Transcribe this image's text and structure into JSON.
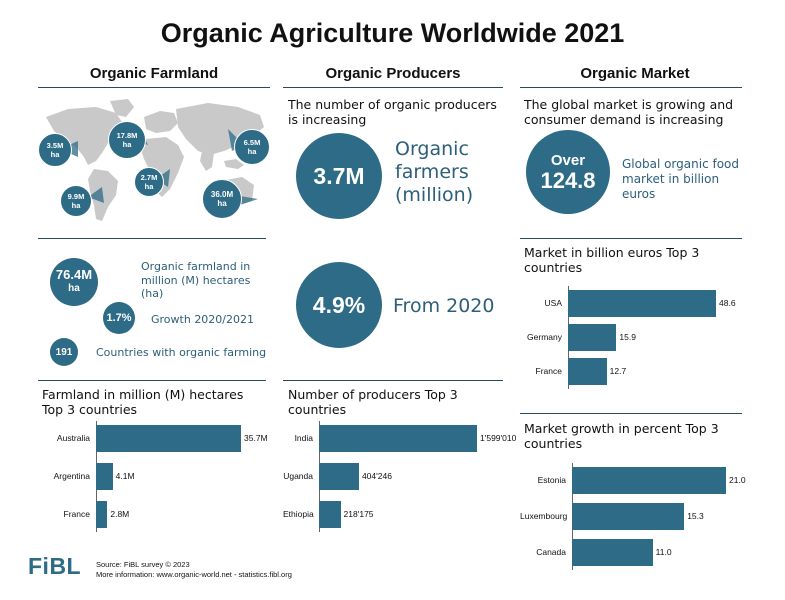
{
  "title": "Organic Agriculture Worldwide 2021",
  "columns": {
    "farmland": "Organic Farmland",
    "producers": "Organic Producers",
    "market": "Organic Market"
  },
  "map_bubbles": [
    {
      "value": "3.5M",
      "unit": "ha"
    },
    {
      "value": "17.8M",
      "unit": "ha"
    },
    {
      "value": "6.5M",
      "unit": "ha"
    },
    {
      "value": "2.7M",
      "unit": "ha"
    },
    {
      "value": "9.9M",
      "unit": "ha"
    },
    {
      "value": "36.0M",
      "unit": "ha"
    }
  ],
  "farmland_stats": {
    "area_value": "76.4M",
    "area_unit": "ha",
    "area_label": "Organic farmland in million (M) hectares (ha)",
    "growth_value": "1.7%",
    "growth_label": "Growth 2020/2021",
    "countries_value": "191",
    "countries_label": "Countries with organic farming"
  },
  "producers_stats": {
    "subtitle": "The number of organic producers is increasing",
    "farmers_value": "3.7M",
    "farmers_label": "Organic farmers (million)",
    "growth_value": "4.9%",
    "growth_label": "From 2020"
  },
  "market_stats": {
    "subtitle": "The global market is growing and consumer demand is increasing",
    "value_prefix": "Over",
    "value": "124.8",
    "label": "Global organic food market in billion euros"
  },
  "footer": {
    "logo": "FiBL",
    "source_line1": "Source: FiBL survey © 2023",
    "source_line2": "More information: www.organic-world.net - statistics.fibl.org"
  },
  "chart_data": [
    {
      "type": "bar",
      "orientation": "horizontal",
      "title": "Farmland in million (M) hectares Top 3 countries",
      "categories": [
        "Australia",
        "Argentina",
        "France"
      ],
      "values": [
        35.7,
        4.1,
        2.8
      ],
      "value_labels": [
        "35.7M",
        "4.1M",
        "2.8M"
      ],
      "color": "#2d6b86"
    },
    {
      "type": "bar",
      "orientation": "horizontal",
      "title": "Number of producers Top 3 countries",
      "categories": [
        "India",
        "Uganda",
        "Ethiopia"
      ],
      "values": [
        1599010,
        404246,
        218175
      ],
      "value_labels": [
        "1'599'010",
        "404'246",
        "218'175"
      ],
      "color": "#2d6b86"
    },
    {
      "type": "bar",
      "orientation": "horizontal",
      "title": "Market in billion euros Top 3 countries",
      "categories": [
        "USA",
        "Germany",
        "France"
      ],
      "values": [
        48.6,
        15.9,
        12.7
      ],
      "value_labels": [
        "48.6",
        "15.9",
        "12.7"
      ],
      "color": "#2d6b86"
    },
    {
      "type": "bar",
      "orientation": "horizontal",
      "title": "Market growth in percent Top 3 countries",
      "categories": [
        "Estonia",
        "Luxembourg",
        "Canada"
      ],
      "values": [
        21.0,
        15.3,
        11.0
      ],
      "value_labels": [
        "21.0",
        "15.3",
        "11.0"
      ],
      "color": "#2d6b86"
    }
  ]
}
